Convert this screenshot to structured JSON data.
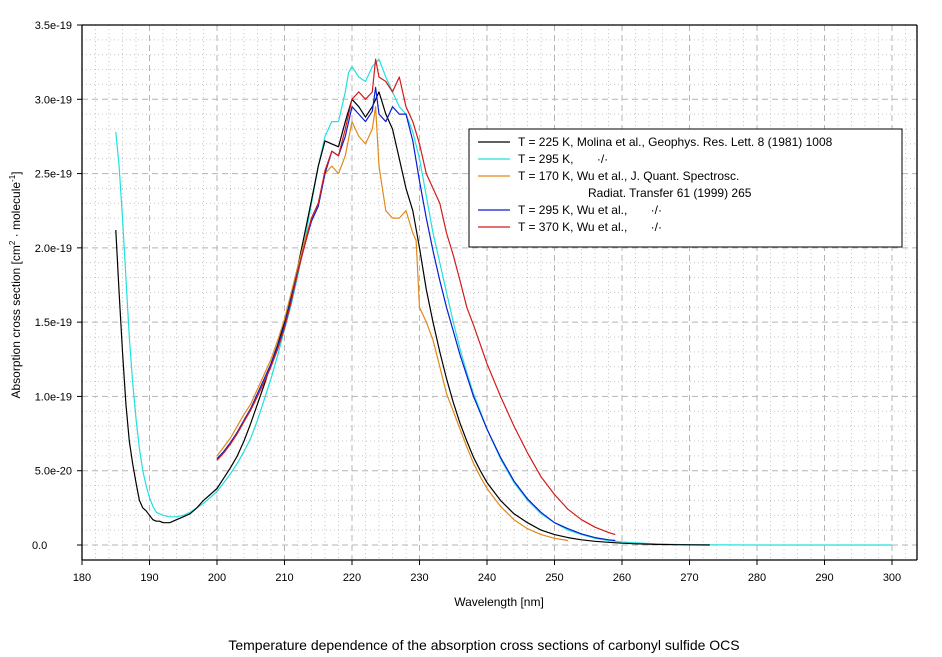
{
  "chart_data": {
    "type": "line",
    "title": "Temperature dependence of the absorption cross sections of carbonyl sulfide OCS",
    "xlabel": "Wavelength [nm]",
    "ylabel_main": "Absorption cross section [cm",
    "ylabel_sup1": "2",
    "ylabel_mid": " · molecule",
    "ylabel_sup2": "-1",
    "ylabel_end": "]",
    "xlim": [
      180,
      300
    ],
    "ylim": [
      0,
      3.5e-19
    ],
    "grid": true,
    "legend_position": "top-right",
    "x_ticks": [
      180,
      190,
      200,
      210,
      220,
      230,
      240,
      250,
      260,
      270,
      280,
      290,
      300
    ],
    "x_tick_labels": [
      "180",
      "190",
      "200",
      "210",
      "220",
      "230",
      "240",
      "250",
      "260",
      "270",
      "280",
      "290",
      "300"
    ],
    "y_ticks": [
      0,
      5e-20,
      1e-19,
      1.5e-19,
      2e-19,
      2.5e-19,
      3e-19,
      3.5e-19
    ],
    "y_tick_labels": [
      "0.0",
      "5.0e-20",
      "1.0e-19",
      "1.5e-19",
      "2.0e-19",
      "2.5e-19",
      "3.0e-19",
      "3.5e-19"
    ],
    "series": [
      {
        "name": "T = 225 K, Molina et al., Geophys. Res. Lett. 8 (1981) 1008",
        "legend_lines": [
          "T = 225 K, Molina et al., Geophys. Res. Lett. 8 (1981) 1008"
        ],
        "color": "#000000",
        "x": [
          185,
          185.5,
          186,
          186.5,
          187,
          187.5,
          188,
          188.5,
          189,
          189.5,
          190,
          190.5,
          191,
          191.5,
          192,
          193,
          194,
          195,
          196,
          197,
          198,
          199,
          200,
          201,
          202,
          203,
          204,
          205,
          206,
          207,
          208,
          209,
          210,
          211,
          212,
          213,
          214,
          215,
          216,
          217,
          218,
          219,
          220,
          221,
          222,
          223,
          224,
          225,
          226,
          227,
          228,
          229,
          230,
          231,
          232,
          233,
          234,
          235,
          236,
          237,
          238,
          239,
          240,
          242,
          244,
          246,
          248,
          250,
          252,
          254,
          256,
          258,
          260,
          262,
          265,
          268,
          273
        ],
        "y": [
          2.12e-19,
          1.7e-19,
          1.3e-19,
          9.5e-20,
          7e-20,
          5.5e-20,
          4.2e-20,
          3e-20,
          2.5e-20,
          2.3e-20,
          2e-20,
          1.7e-20,
          1.6e-20,
          1.6e-20,
          1.5e-20,
          1.5e-20,
          1.7e-20,
          1.9e-20,
          2.1e-20,
          2.5e-20,
          3e-20,
          3.4e-20,
          3.8e-20,
          4.5e-20,
          5.2e-20,
          6e-20,
          7e-20,
          8.2e-20,
          9.5e-20,
          1.08e-19,
          1.22e-19,
          1.35e-19,
          1.5e-19,
          1.68e-19,
          1.88e-19,
          2.1e-19,
          2.32e-19,
          2.55e-19,
          2.72e-19,
          2.7e-19,
          2.68e-19,
          2.85e-19,
          3e-19,
          2.95e-19,
          2.88e-19,
          2.95e-19,
          3.05e-19,
          2.9e-19,
          2.8e-19,
          2.6e-19,
          2.4e-19,
          2.25e-19,
          2e-19,
          1.72e-19,
          1.5e-19,
          1.3e-19,
          1.12e-19,
          9.6e-20,
          8.2e-20,
          7e-20,
          5.9e-20,
          5e-20,
          4.2e-20,
          3e-20,
          2.1e-20,
          1.5e-20,
          1e-20,
          7e-21,
          5e-21,
          3.5e-21,
          2.5e-21,
          1.8e-21,
          1.2e-21,
          8e-22,
          4e-22,
          2e-22,
          0.0
        ]
      },
      {
        "name": "T = 295 K, ·/·",
        "legend_lines": [
          "T = 295 K,       ·/·"
        ],
        "color": "#22e0e0",
        "x": [
          185,
          185.5,
          186,
          186.5,
          187,
          187.5,
          188,
          188.5,
          189,
          189.5,
          190,
          190.5,
          191,
          192,
          193,
          194,
          195,
          196,
          197,
          198,
          199,
          200,
          201,
          202,
          203,
          204,
          205,
          206,
          207,
          208,
          209,
          210,
          211,
          212,
          213,
          214,
          215,
          216,
          217,
          218,
          219,
          219.5,
          220,
          221,
          222,
          223,
          224,
          225,
          226,
          227,
          228,
          229,
          230,
          231,
          232,
          233,
          234,
          235,
          236,
          237,
          238,
          239,
          240,
          242,
          244,
          246,
          248,
          250,
          252,
          254,
          256,
          258,
          260,
          265,
          270,
          280,
          290,
          300
        ],
        "y": [
          2.78e-19,
          2.55e-19,
          2.2e-19,
          1.8e-19,
          1.4e-19,
          1.1e-19,
          8.5e-20,
          6.5e-20,
          5e-20,
          4e-20,
          3.2e-20,
          2.6e-20,
          2.2e-20,
          2e-20,
          1.9e-20,
          1.9e-20,
          2e-20,
          2.2e-20,
          2.5e-20,
          2.8e-20,
          3.2e-20,
          3.6e-20,
          4.2e-20,
          4.8e-20,
          5.5e-20,
          6.3e-20,
          7.2e-20,
          8.4e-20,
          9.8e-20,
          1.12e-19,
          1.28e-19,
          1.45e-19,
          1.62e-19,
          1.82e-19,
          2.05e-19,
          2.3e-19,
          2.55e-19,
          2.75e-19,
          2.85e-19,
          2.85e-19,
          3.05e-19,
          3.18e-19,
          3.22e-19,
          3.15e-19,
          3.12e-19,
          3.22e-19,
          3.27e-19,
          3.15e-19,
          3.05e-19,
          2.95e-19,
          2.9e-19,
          2.78e-19,
          2.6e-19,
          2.35e-19,
          2.1e-19,
          1.9e-19,
          1.7e-19,
          1.5e-19,
          1.32e-19,
          1.16e-19,
          1.02e-19,
          9e-20,
          7.8e-20,
          5.8e-20,
          4.2e-20,
          3e-20,
          2.1e-20,
          1.5e-20,
          1e-20,
          7e-21,
          4.5e-21,
          3e-21,
          2e-21,
          7e-22,
          2e-22,
          0.0,
          0.0,
          0.0
        ]
      },
      {
        "name": "T = 170 K, Wu et al., J. Quant. Spectrosc. Radiat. Transfer 61 (1999) 265",
        "legend_lines": [
          "T = 170 K, Wu et al., J. Quant. Spectrosc.",
          "Radiat. Transfer 61 (1999) 265"
        ],
        "color": "#e08a1a",
        "x": [
          200,
          201,
          202,
          203,
          204,
          205,
          206,
          207,
          208,
          209,
          210,
          211,
          212,
          213,
          214,
          215,
          216,
          217,
          218,
          219,
          220,
          221,
          222,
          223,
          223.5,
          224,
          225,
          226,
          227,
          228,
          229,
          229.5,
          230,
          231,
          232,
          233,
          234,
          235,
          236,
          237,
          238,
          239,
          240,
          242,
          244,
          246,
          248,
          250,
          252
        ],
        "y": [
          6e-20,
          6.6e-20,
          7.2e-20,
          8e-20,
          8.8e-20,
          9.5e-20,
          1.05e-19,
          1.15e-19,
          1.25e-19,
          1.38e-19,
          1.52e-19,
          1.7e-19,
          1.88e-19,
          2.05e-19,
          2.2e-19,
          2.3e-19,
          2.5e-19,
          2.55e-19,
          2.5e-19,
          2.62e-19,
          2.85e-19,
          2.75e-19,
          2.7e-19,
          2.8e-19,
          2.95e-19,
          2.55e-19,
          2.25e-19,
          2.2e-19,
          2.2e-19,
          2.25e-19,
          2.1e-19,
          2.05e-19,
          1.6e-19,
          1.5e-19,
          1.38e-19,
          1.2e-19,
          1.02e-19,
          9e-20,
          7.8e-20,
          6.6e-20,
          5.5e-20,
          4.6e-20,
          3.8e-20,
          2.6e-20,
          1.7e-20,
          1.1e-20,
          7e-21,
          4.5e-21,
          3e-21
        ]
      },
      {
        "name": "T = 295 K, Wu et al., ·/·",
        "legend_lines": [
          "T = 295 K, Wu et al.,       ·/·"
        ],
        "color": "#0a1ecf",
        "x": [
          200,
          201,
          202,
          203,
          204,
          205,
          206,
          207,
          208,
          209,
          210,
          211,
          212,
          213,
          214,
          215,
          216,
          217,
          218,
          219,
          220,
          221,
          222,
          223,
          223.5,
          224,
          225,
          226,
          227,
          228,
          229,
          230,
          231,
          232,
          233,
          234,
          235,
          236,
          237,
          238,
          239,
          240,
          242,
          244,
          246,
          248,
          250,
          252,
          254,
          256,
          258,
          259
        ],
        "y": [
          5.8e-20,
          6.3e-20,
          6.9e-20,
          7.6e-20,
          8.4e-20,
          9.2e-20,
          1.02e-19,
          1.12e-19,
          1.22e-19,
          1.34e-19,
          1.48e-19,
          1.66e-19,
          1.85e-19,
          2.02e-19,
          2.18e-19,
          2.28e-19,
          2.5e-19,
          2.65e-19,
          2.62e-19,
          2.75e-19,
          2.95e-19,
          2.9e-19,
          2.85e-19,
          2.92e-19,
          3.08e-19,
          2.9e-19,
          2.85e-19,
          2.95e-19,
          2.9e-19,
          2.9e-19,
          2.72e-19,
          2.45e-19,
          2.2e-19,
          1.98e-19,
          1.78e-19,
          1.6e-19,
          1.44e-19,
          1.28e-19,
          1.14e-19,
          1e-19,
          8.9e-20,
          7.8e-20,
          5.9e-20,
          4.3e-20,
          3.1e-20,
          2.2e-20,
          1.5e-20,
          1.1e-20,
          7.5e-21,
          5e-21,
          3.5e-21,
          3e-21
        ]
      },
      {
        "name": "T = 370 K, Wu et al., ·/·",
        "legend_lines": [
          "T = 370 K, Wu et al.,       ·/·"
        ],
        "color": "#d41a1a",
        "x": [
          200,
          201,
          202,
          203,
          204,
          205,
          206,
          207,
          208,
          209,
          210,
          211,
          212,
          213,
          214,
          215,
          216,
          217,
          218,
          219,
          220,
          221,
          222,
          223,
          223.5,
          224,
          225,
          226,
          227,
          228,
          229,
          230,
          231,
          232,
          233,
          234,
          235,
          236,
          237,
          238,
          239,
          240,
          242,
          244,
          246,
          248,
          250,
          252,
          254,
          256,
          258,
          259
        ],
        "y": [
          5.7e-20,
          6.2e-20,
          6.8e-20,
          7.5e-20,
          8.3e-20,
          9.1e-20,
          1e-19,
          1.1e-19,
          1.2e-19,
          1.32e-19,
          1.46e-19,
          1.64e-19,
          1.84e-19,
          2.02e-19,
          2.2e-19,
          2.3e-19,
          2.52e-19,
          2.65e-19,
          2.62e-19,
          2.8e-19,
          3e-19,
          3.05e-19,
          3e-19,
          3.05e-19,
          3.27e-19,
          3.15e-19,
          3.12e-19,
          3.05e-19,
          3.15e-19,
          2.95e-19,
          2.85e-19,
          2.7e-19,
          2.5e-19,
          2.4e-19,
          2.3e-19,
          2.1e-19,
          1.95e-19,
          1.78e-19,
          1.6e-19,
          1.48e-19,
          1.35e-19,
          1.22e-19,
          1e-19,
          8e-20,
          6.2e-20,
          4.6e-20,
          3.4e-20,
          2.4e-20,
          1.7e-20,
          1.2e-20,
          8.5e-21,
          7e-21
        ]
      }
    ]
  }
}
